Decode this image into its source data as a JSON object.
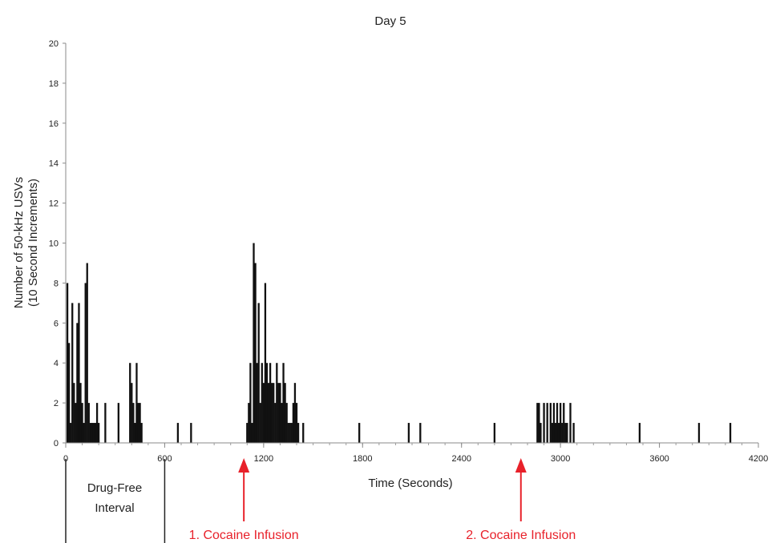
{
  "chart_data": {
    "type": "bar",
    "title": "Day 5",
    "xlabel": "Time (Seconds)",
    "ylabel": [
      "Number of 50-kHz USVs",
      "(10 Second Increments)"
    ],
    "xlim": [
      0,
      4200
    ],
    "ylim": [
      0,
      20
    ],
    "xticks": [
      0,
      600,
      1200,
      1800,
      2400,
      3000,
      3600,
      4200
    ],
    "yticks": [
      0,
      2,
      4,
      6,
      8,
      10,
      12,
      14,
      16,
      18,
      20
    ],
    "grid": false,
    "bin_width_seconds": 10,
    "x": [
      10,
      20,
      30,
      40,
      50,
      60,
      70,
      80,
      90,
      100,
      110,
      120,
      130,
      140,
      150,
      160,
      170,
      180,
      190,
      200,
      240,
      320,
      390,
      400,
      410,
      420,
      430,
      440,
      450,
      460,
      680,
      760,
      1100,
      1110,
      1120,
      1130,
      1140,
      1150,
      1160,
      1170,
      1180,
      1190,
      1200,
      1210,
      1220,
      1230,
      1240,
      1250,
      1260,
      1270,
      1280,
      1290,
      1300,
      1310,
      1320,
      1330,
      1340,
      1350,
      1360,
      1370,
      1380,
      1390,
      1400,
      1410,
      1440,
      1780,
      2080,
      2150,
      2600,
      2860,
      2870,
      2880,
      2900,
      2920,
      2940,
      2950,
      2960,
      2970,
      2980,
      2990,
      3000,
      3010,
      3020,
      3030,
      3040,
      3060,
      3080,
      3480,
      3840,
      4030
    ],
    "values": [
      8,
      5,
      1,
      7,
      3,
      2,
      6,
      7,
      3,
      2,
      1,
      8,
      9,
      2,
      1,
      1,
      1,
      1,
      2,
      1,
      2,
      2,
      4,
      3,
      2,
      1,
      4,
      2,
      2,
      1,
      1,
      1,
      1,
      2,
      4,
      1,
      10,
      9,
      4,
      7,
      2,
      4,
      3,
      8,
      4,
      3,
      4,
      3,
      3,
      2,
      4,
      3,
      3,
      2,
      4,
      3,
      2,
      1,
      1,
      1,
      2,
      3,
      2,
      1,
      1,
      1,
      1,
      1,
      1,
      2,
      2,
      1,
      2,
      2,
      2,
      1,
      2,
      1,
      2,
      1,
      2,
      1,
      2,
      1,
      1,
      2,
      1,
      1,
      1,
      1
    ]
  },
  "annotations": {
    "interval_label": [
      "Drug-Free",
      "Interval"
    ],
    "interval_range": [
      0,
      600
    ],
    "infusions": [
      {
        "label": "1. Cocaine Infusion",
        "time": 1080
      },
      {
        "label": "2. Cocaine Infusion",
        "time": 2760
      }
    ],
    "arrow_color": "#e8212a",
    "bar_color": "#111111"
  }
}
